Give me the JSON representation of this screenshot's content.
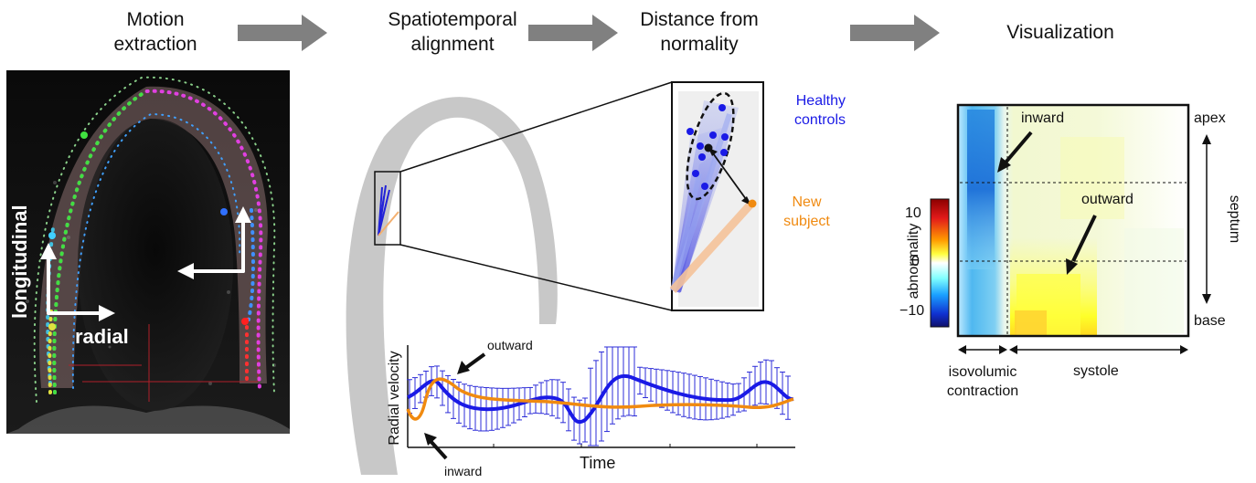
{
  "steps": [
    {
      "line1": "Motion",
      "line2": "extraction"
    },
    {
      "line1": "Spatiotemporal",
      "line2": "alignment"
    },
    {
      "line1": "Distance from",
      "line2": "normality"
    },
    {
      "line1": "Visualization",
      "line2": ""
    }
  ],
  "echo": {
    "longitudinal": "longitudinal",
    "radial": "radial"
  },
  "zoom": {
    "healthy_line1": "Healthy",
    "healthy_line2": "controls",
    "new_line1": "New",
    "new_line2": "subject"
  },
  "plot": {
    "ylabel": "Radial velocity",
    "xlabel": "Time",
    "outward": "outward",
    "inward": "inward"
  },
  "heatmap": {
    "colorbar_label": "abnormality",
    "ticks": [
      "10",
      "0",
      "−10"
    ],
    "inward": "inward",
    "outward": "outward",
    "apex": "apex",
    "base": "base",
    "septum": "septum",
    "iso_line1": "isovolumic",
    "iso_line2": "contraction",
    "systole": "systole"
  },
  "colors": {
    "healthy": "#1a1ae6",
    "new_subject": "#f08a10",
    "arrow": "#808080",
    "myocardium": "#c8c8c8"
  }
}
